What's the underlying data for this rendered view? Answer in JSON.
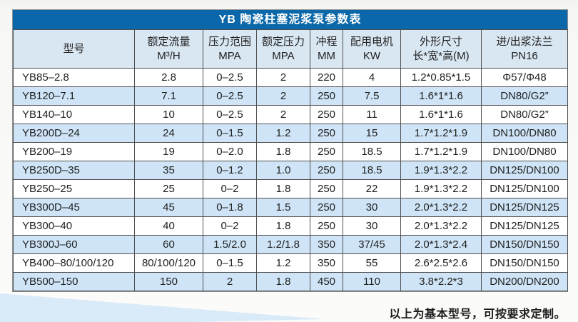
{
  "page": {
    "title_bar": "YB 陶瓷柱塞泥浆泵参数表",
    "footer_note": "以上为基本型号，可按要求定制。"
  },
  "table": {
    "headers": [
      {
        "line1": "型号",
        "line2": ""
      },
      {
        "line1": "额定流量",
        "line2": "M³/H"
      },
      {
        "line1": "压力范围",
        "line2": "MPA"
      },
      {
        "line1": "额定压力",
        "line2": "MPA"
      },
      {
        "line1": "冲程",
        "line2": "MM"
      },
      {
        "line1": "配用电机",
        "line2": "KW"
      },
      {
        "line1": "外形尺寸",
        "line2": "长*宽*高(M)"
      },
      {
        "line1": "进/出浆法兰",
        "line2": "PN16"
      }
    ],
    "rows": [
      [
        "YB85–2.8",
        "2.8",
        "0–2.5",
        "2",
        "220",
        "4",
        "1.2*0.85*1.5",
        "Φ57/Φ48"
      ],
      [
        "YB120–7.1",
        "7.1",
        "0–2.5",
        "2",
        "250",
        "7.5",
        "1.6*1*1.6",
        "DN80/G2”"
      ],
      [
        "YB140–10",
        "10",
        "0–2.5",
        "2",
        "250",
        "11",
        "1.6*1*1.6",
        "DN80/G2”"
      ],
      [
        "YB200D–24",
        "24",
        "0–1.5",
        "1.2",
        "250",
        "15",
        "1.7*1.2*1.9",
        "DN100/DN80"
      ],
      [
        "YB200–19",
        "19",
        "0–2.0",
        "1.8",
        "250",
        "18.5",
        "1.7*1.2*1.9",
        "DN100/DN80"
      ],
      [
        "YB250D–35",
        "35",
        "0–1.2",
        "1.0",
        "250",
        "18.5",
        "1.9*1.3*2.2",
        "DN125/DN100"
      ],
      [
        "YB250–25",
        "25",
        "0–2",
        "1.8",
        "250",
        "22",
        "1.9*1.3*2.2",
        "DN125/DN100"
      ],
      [
        "YB300D–45",
        "45",
        "0–1.8",
        "1.5",
        "250",
        "30",
        "2.0*1.3*2.2",
        "DN125/DN125"
      ],
      [
        "YB300–40",
        "40",
        "0–2",
        "1.8",
        "250",
        "30",
        "2.0*1.3*2.2",
        "DN125/DN125"
      ],
      [
        "YB300J–60",
        "60",
        "1.5/2.0",
        "1.2/1.8",
        "350",
        "37/45",
        "2.0*1.3*2.4",
        "DN150/DN150"
      ],
      [
        "YB400–80/100/120",
        "80/100/120",
        "0–1.5",
        "1.2",
        "350",
        "55",
        "2.6*2.5*2.6",
        "DN150/DN150"
      ],
      [
        "YB500–150",
        "150",
        "2",
        "1.8",
        "450",
        "110",
        "3.8*2.2*3",
        "DN200/DN200"
      ]
    ]
  },
  "colors": {
    "title_bar_bg": "#0a67a9",
    "title_text": "#ffffff",
    "header_row_bg": "#d9e7f3",
    "row_bg": "#ffffff",
    "row_alt_bg": "#cfe5f7",
    "grid_line": "#4f4f4f",
    "text": "#1f1f1f",
    "page_bg": "#f6f6f4",
    "wedge": "#d9eaf8"
  }
}
